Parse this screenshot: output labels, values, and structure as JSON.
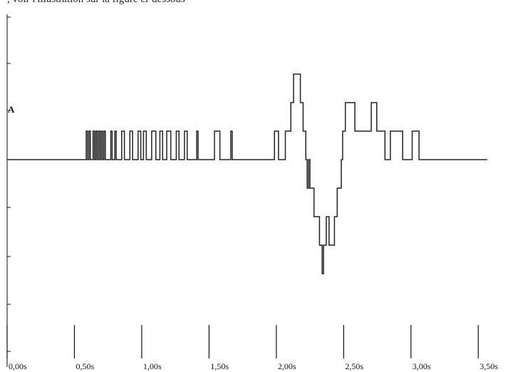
{
  "caption_fragment": ", voir l'illustration sur la figure ci-dessous",
  "chart_data": {
    "type": "line",
    "title": "",
    "xlabel": "",
    "ylabel": "A",
    "xlim": [
      0,
      3.5
    ],
    "x_tick_labels": [
      "0,00s",
      "0,50s",
      "1,00s",
      "1,50s",
      "2,00s",
      "2,50s",
      "3,00s",
      "3,50s"
    ],
    "x_ticks": [
      0,
      0.5,
      1.0,
      1.5,
      2.0,
      2.5,
      3.0,
      3.5
    ],
    "series": [
      {
        "points": [
          [
            0.0,
            0
          ],
          [
            0.58,
            0
          ],
          [
            0.58,
            1
          ],
          [
            0.59,
            1
          ],
          [
            0.59,
            0
          ],
          [
            0.6,
            0
          ],
          [
            0.6,
            1
          ],
          [
            0.61,
            1
          ],
          [
            0.61,
            0
          ],
          [
            0.63,
            0
          ],
          [
            0.63,
            1
          ],
          [
            0.64,
            1
          ],
          [
            0.64,
            0
          ],
          [
            0.65,
            0
          ],
          [
            0.65,
            1
          ],
          [
            0.66,
            1
          ],
          [
            0.66,
            0
          ],
          [
            0.67,
            0
          ],
          [
            0.67,
            1
          ],
          [
            0.68,
            1
          ],
          [
            0.68,
            0
          ],
          [
            0.69,
            0
          ],
          [
            0.69,
            1
          ],
          [
            0.7,
            1
          ],
          [
            0.7,
            0
          ],
          [
            0.71,
            0
          ],
          [
            0.71,
            1
          ],
          [
            0.72,
            1
          ],
          [
            0.72,
            0
          ],
          [
            0.76,
            0
          ],
          [
            0.76,
            1
          ],
          [
            0.77,
            1
          ],
          [
            0.77,
            0
          ],
          [
            0.79,
            0
          ],
          [
            0.79,
            1
          ],
          [
            0.8,
            1
          ],
          [
            0.8,
            0
          ],
          [
            0.84,
            0
          ],
          [
            0.84,
            1
          ],
          [
            0.86,
            1
          ],
          [
            0.86,
            0
          ],
          [
            0.9,
            0
          ],
          [
            0.9,
            1
          ],
          [
            0.92,
            1
          ],
          [
            0.92,
            0
          ],
          [
            0.96,
            0
          ],
          [
            0.96,
            1
          ],
          [
            0.98,
            1
          ],
          [
            0.98,
            0
          ],
          [
            1.0,
            0
          ],
          [
            1.0,
            1
          ],
          [
            1.02,
            1
          ],
          [
            1.02,
            0
          ],
          [
            1.06,
            0
          ],
          [
            1.06,
            1
          ],
          [
            1.09,
            1
          ],
          [
            1.09,
            0
          ],
          [
            1.12,
            0
          ],
          [
            1.12,
            1
          ],
          [
            1.14,
            1
          ],
          [
            1.14,
            0
          ],
          [
            1.17,
            0
          ],
          [
            1.17,
            1
          ],
          [
            1.2,
            1
          ],
          [
            1.2,
            0
          ],
          [
            1.24,
            0
          ],
          [
            1.24,
            1
          ],
          [
            1.26,
            1
          ],
          [
            1.26,
            0
          ],
          [
            1.3,
            0
          ],
          [
            1.3,
            1
          ],
          [
            1.32,
            1
          ],
          [
            1.32,
            0
          ],
          [
            1.39,
            0
          ],
          [
            1.39,
            1
          ],
          [
            1.4,
            1
          ],
          [
            1.4,
            0
          ],
          [
            1.52,
            0
          ],
          [
            1.52,
            1
          ],
          [
            1.56,
            1
          ],
          [
            1.56,
            0
          ],
          [
            1.64,
            0
          ],
          [
            1.64,
            1
          ],
          [
            1.65,
            1
          ],
          [
            1.65,
            0
          ],
          [
            1.96,
            0
          ],
          [
            1.96,
            1
          ],
          [
            1.99,
            1
          ],
          [
            1.99,
            0
          ],
          [
            2.04,
            0
          ],
          [
            2.04,
            1
          ],
          [
            2.08,
            1
          ],
          [
            2.08,
            2
          ],
          [
            2.1,
            2
          ],
          [
            2.1,
            3
          ],
          [
            2.15,
            3
          ],
          [
            2.15,
            2
          ],
          [
            2.17,
            2
          ],
          [
            2.17,
            1
          ],
          [
            2.19,
            1
          ],
          [
            2.19,
            0
          ],
          [
            2.2,
            0
          ],
          [
            2.2,
            -1
          ],
          [
            2.21,
            -1
          ],
          [
            2.21,
            0
          ],
          [
            2.22,
            0
          ],
          [
            2.22,
            -1
          ],
          [
            2.25,
            -1
          ],
          [
            2.25,
            -2
          ],
          [
            2.29,
            -2
          ],
          [
            2.29,
            -3
          ],
          [
            2.31,
            -3
          ],
          [
            2.31,
            -4
          ],
          [
            2.32,
            -4
          ],
          [
            2.32,
            -3
          ],
          [
            2.34,
            -3
          ],
          [
            2.34,
            -2
          ],
          [
            2.36,
            -2
          ],
          [
            2.36,
            -3
          ],
          [
            2.4,
            -3
          ],
          [
            2.4,
            -2
          ],
          [
            2.42,
            -2
          ],
          [
            2.42,
            -1
          ],
          [
            2.45,
            -1
          ],
          [
            2.45,
            0
          ],
          [
            2.46,
            0
          ],
          [
            2.46,
            1
          ],
          [
            2.48,
            1
          ],
          [
            2.48,
            2
          ],
          [
            2.55,
            2
          ],
          [
            2.55,
            1
          ],
          [
            2.67,
            1
          ],
          [
            2.67,
            2
          ],
          [
            2.71,
            2
          ],
          [
            2.71,
            1
          ],
          [
            2.77,
            1
          ],
          [
            2.77,
            0
          ],
          [
            2.81,
            0
          ],
          [
            2.81,
            1
          ],
          [
            2.9,
            1
          ],
          [
            2.9,
            0
          ],
          [
            2.97,
            0
          ],
          [
            2.97,
            1
          ],
          [
            3.02,
            1
          ],
          [
            3.02,
            0
          ],
          [
            3.52,
            0
          ]
        ]
      }
    ],
    "grid": false
  }
}
